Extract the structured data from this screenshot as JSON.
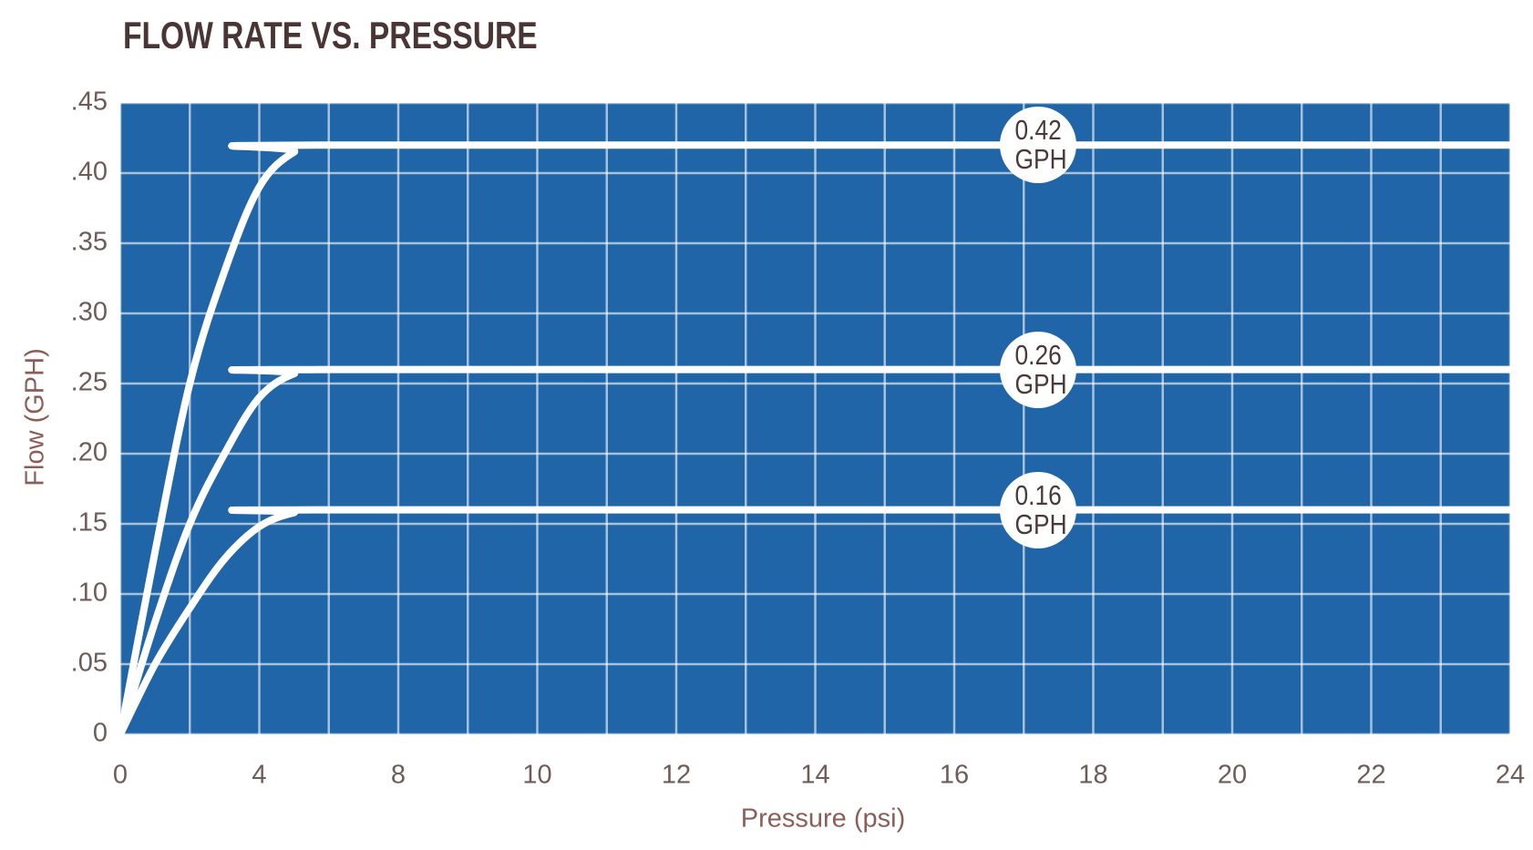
{
  "chart_data": {
    "type": "line",
    "title": "FLOW RATE VS. PRESSURE",
    "x_label": "Pressure (psi)",
    "y_label": "Flow (GPH)",
    "x": [
      0,
      1,
      2,
      3,
      4,
      5,
      6,
      24
    ],
    "series": [
      {
        "name": "0.42 GPH",
        "color": "#ffffff",
        "values": [
          0,
          0.13,
          0.25,
          0.33,
          0.39,
          0.415,
          0.42,
          0.42
        ],
        "label_x": 17.2
      },
      {
        "name": "0.26 GPH",
        "color": "#ffffff",
        "values": [
          0,
          0.08,
          0.15,
          0.2,
          0.24,
          0.257,
          0.26,
          0.26
        ],
        "label_x": 17.2
      },
      {
        "name": "0.16 GPH",
        "color": "#ffffff",
        "values": [
          0,
          0.05,
          0.09,
          0.125,
          0.148,
          0.158,
          0.16,
          0.16
        ],
        "label_x": 17.2
      }
    ],
    "xlim": [
      0,
      24
    ],
    "xticks": [
      0,
      4,
      8,
      10,
      12,
      14,
      16,
      18,
      20,
      22,
      24
    ],
    "ylim": [
      0,
      0.45
    ],
    "yticks": [
      0,
      {
        "value": 0.05,
        "label": ".05"
      },
      {
        "value": 0.1,
        "label": ".10"
      },
      {
        "value": 0.15,
        "label": ".15"
      },
      {
        "value": 0.2,
        "label": ".20"
      },
      {
        "value": 0.25,
        "label": ".25"
      },
      {
        "value": 0.3,
        "label": ".30"
      },
      {
        "value": 0.35,
        "label": ".35"
      },
      {
        "value": 0.4,
        "label": ".40"
      },
      {
        "value": 0.45,
        "label": ".45"
      }
    ],
    "grid": true,
    "background": "#1f65a7"
  }
}
